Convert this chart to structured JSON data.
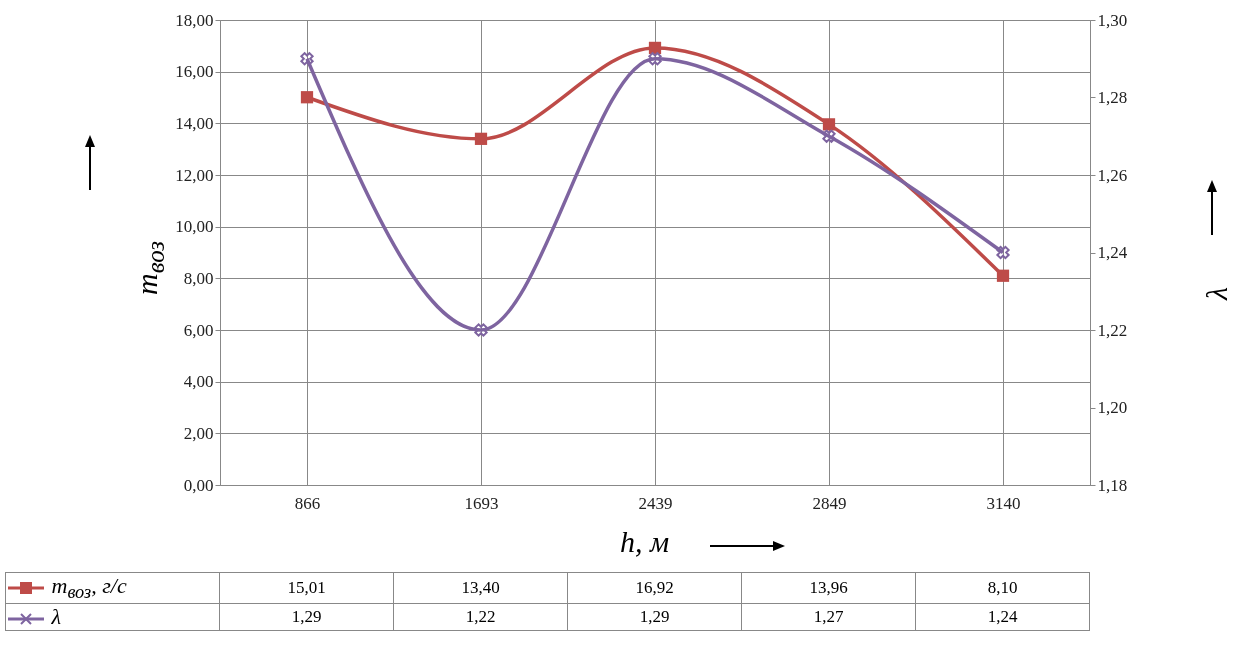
{
  "chart_data": {
    "type": "line",
    "categories": [
      "866",
      "1693",
      "2439",
      "2849",
      "3140"
    ],
    "xlabel": "h, м",
    "ylabel": "m$_{воз}$",
    "y2label": "λ",
    "ylim": [
      0,
      18
    ],
    "yticks": [
      {
        "value": 0,
        "label": "0,00"
      },
      {
        "value": 2,
        "label": "2,00"
      },
      {
        "value": 4,
        "label": "4,00"
      },
      {
        "value": 6,
        "label": "6,00"
      },
      {
        "value": 8,
        "label": "8,00"
      },
      {
        "value": 10,
        "label": "10,00"
      },
      {
        "value": 12,
        "label": "12,00"
      },
      {
        "value": 14,
        "label": "14,00"
      },
      {
        "value": 16,
        "label": "16,00"
      },
      {
        "value": 18,
        "label": "18,00"
      }
    ],
    "y2lim": [
      1.18,
      1.3
    ],
    "y2ticks": [
      {
        "value": 1.18,
        "label": "1,18"
      },
      {
        "value": 1.2,
        "label": "1,20"
      },
      {
        "value": 1.22,
        "label": "1,22"
      },
      {
        "value": 1.24,
        "label": "1,24"
      },
      {
        "value": 1.26,
        "label": "1,26"
      },
      {
        "value": 1.28,
        "label": "1,28"
      },
      {
        "value": 1.3,
        "label": "1,30"
      }
    ],
    "grid": true,
    "legend": "bottom",
    "series": [
      {
        "name": "m$_{воз}$, г/с",
        "color": "#be4b48",
        "marker": "square",
        "values": [
          15.01,
          13.4,
          16.92,
          13.96,
          8.1
        ],
        "value_labels": [
          "15,01",
          "13,40",
          "16,92",
          "13,96",
          "8,10"
        ]
      },
      {
        "name": "λ",
        "color": "#7e64a0",
        "marker": "cross",
        "axis": "y2",
        "values": [
          1.29,
          1.22,
          1.29,
          1.27,
          1.24
        ],
        "value_labels": [
          "1,29",
          "1,22",
          "1,29",
          "1,27",
          "1,24"
        ]
      }
    ]
  }
}
